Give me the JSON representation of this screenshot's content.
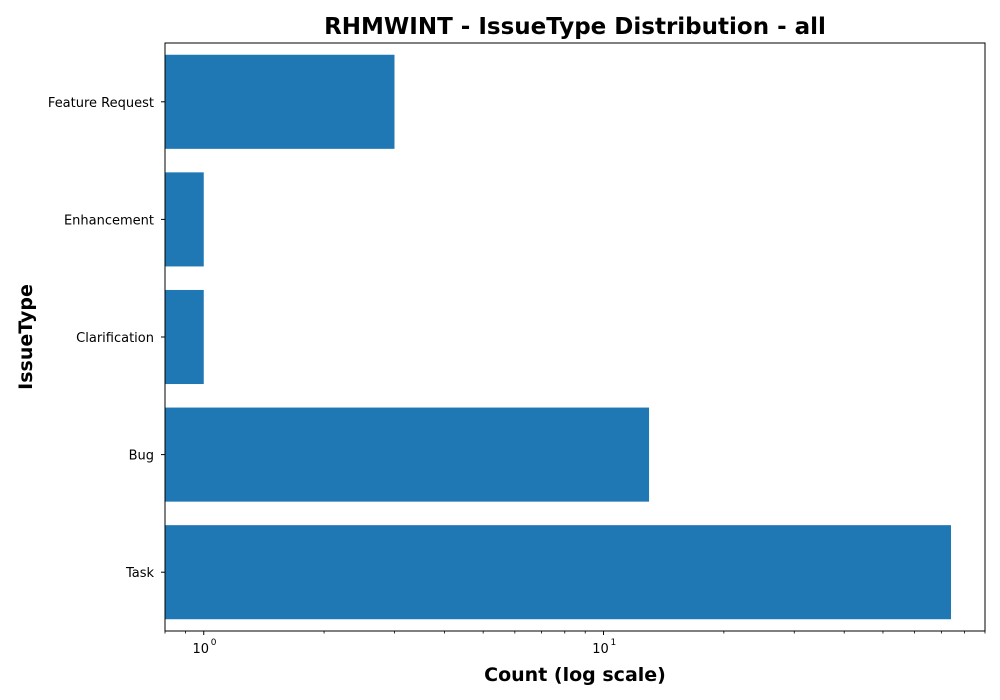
{
  "chart_data": {
    "type": "bar",
    "orientation": "horizontal",
    "title": "RHMWINT - IssueType Distribution - all",
    "xlabel": "Count (log scale)",
    "ylabel": "IssueType",
    "x_scale": "log",
    "xlim": [
      0.8,
      90
    ],
    "x_major_ticks": [
      1,
      10
    ],
    "x_tick_labels": [
      {
        "base": "10",
        "exp": "0"
      },
      {
        "base": "10",
        "exp": "1"
      }
    ],
    "categories": [
      "Task",
      "Bug",
      "Clarification",
      "Enhancement",
      "Feature Request"
    ],
    "values": [
      74,
      13,
      1,
      1,
      3
    ],
    "bar_color": "#1f77b4",
    "grid": false,
    "legend": "none"
  }
}
